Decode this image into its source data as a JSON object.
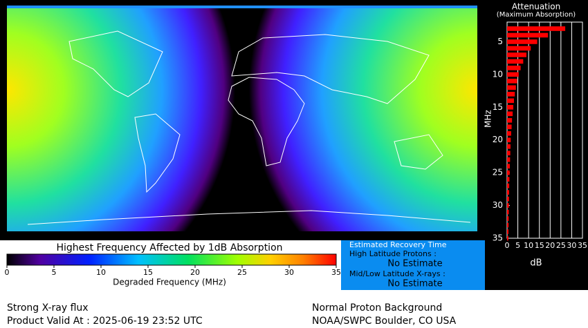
{
  "map": {
    "title": "Highest Frequency Affected by 1dB Absorption",
    "colorbar": {
      "xlim": [
        0,
        35
      ],
      "xticks": [
        0,
        5,
        10,
        15,
        20,
        25,
        30,
        35
      ],
      "label": "Degraded Frequency (MHz)"
    }
  },
  "chart_data": {
    "type": "bar",
    "orientation": "horizontal",
    "title": "Attenuation",
    "subtitle": "(Maximum Absorption)",
    "ylabel": "MHz",
    "xlabel": "dB",
    "color": "#ff0000",
    "grid": true,
    "categories": [
      3,
      4,
      5,
      6,
      7,
      8,
      9,
      10,
      11,
      12,
      13,
      14,
      15,
      16,
      17,
      18,
      19,
      20,
      21,
      22,
      23,
      24,
      25,
      26,
      27,
      28,
      29,
      30,
      31,
      32,
      33,
      34,
      35
    ],
    "values": [
      27,
      19,
      14,
      11,
      9,
      7.5,
      6.3,
      5.4,
      4.7,
      4.1,
      3.6,
      3.2,
      2.9,
      2.6,
      2.3,
      2.1,
      1.9,
      1.7,
      1.6,
      1.5,
      1.4,
      1.3,
      1.2,
      1.1,
      1.0,
      0.95,
      0.9,
      0.85,
      0.8,
      0.75,
      0.7,
      0.65,
      0.6
    ],
    "xlim": [
      0,
      35
    ],
    "xticks": [
      0,
      5,
      10,
      15,
      20,
      25,
      30,
      35
    ],
    "ylim": [
      2,
      35
    ],
    "yticks": [
      5,
      10,
      15,
      20,
      25,
      30,
      35
    ]
  },
  "recovery": {
    "title": "Estimated Recovery Time",
    "high_label": "High Latitude Protons :",
    "high_value": "No Estimate",
    "low_label": "Mid/Low Latitude X-rays :",
    "low_value": "No Estimate"
  },
  "footer": {
    "status": "Strong X-ray flux",
    "valid": "Product Valid At : 2025-06-19 23:52 UTC",
    "proton": "Normal Proton Background",
    "source": "NOAA/SWPC Boulder, CO USA"
  }
}
